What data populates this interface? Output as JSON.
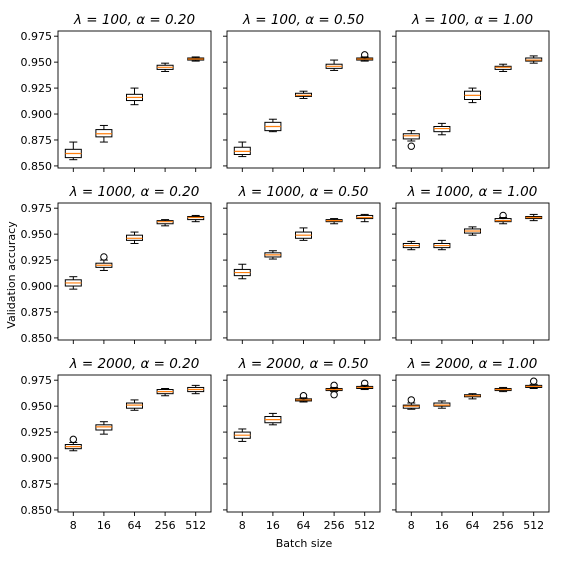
{
  "chart_data": {
    "type": "box",
    "xlabel": "Batch size",
    "ylabel": "Validation accuracy",
    "categories": [
      "8",
      "16",
      "64",
      "256",
      "512"
    ],
    "ylim": [
      0.848,
      0.98
    ],
    "yticks": [
      "0.850",
      "0.875",
      "0.900",
      "0.925",
      "0.950",
      "0.975"
    ],
    "ytick_values": [
      0.85,
      0.875,
      0.9,
      0.925,
      0.95,
      0.975
    ],
    "colors": {
      "box_edge": "#000000",
      "median": "#ff7f0e",
      "box_fill": "#ffffff"
    },
    "panels": [
      {
        "title_left": "λ = 100,",
        "title_right": "α = 0.20",
        "boxes": [
          {
            "wl": 0.856,
            "q1": 0.858,
            "med": 0.862,
            "q3": 0.866,
            "wh": 0.873,
            "outliers": []
          },
          {
            "wl": 0.873,
            "q1": 0.878,
            "med": 0.881,
            "q3": 0.885,
            "wh": 0.889,
            "outliers": []
          },
          {
            "wl": 0.909,
            "q1": 0.913,
            "med": 0.916,
            "q3": 0.919,
            "wh": 0.925,
            "outliers": []
          },
          {
            "wl": 0.941,
            "q1": 0.943,
            "med": 0.945,
            "q3": 0.947,
            "wh": 0.949,
            "outliers": []
          },
          {
            "wl": 0.951,
            "q1": 0.952,
            "med": 0.953,
            "q3": 0.954,
            "wh": 0.955,
            "outliers": []
          }
        ]
      },
      {
        "title_left": "λ = 100,",
        "title_right": "α = 0.50",
        "boxes": [
          {
            "wl": 0.859,
            "q1": 0.861,
            "med": 0.864,
            "q3": 0.868,
            "wh": 0.873,
            "outliers": []
          },
          {
            "wl": 0.883,
            "q1": 0.884,
            "med": 0.888,
            "q3": 0.892,
            "wh": 0.895,
            "outliers": []
          },
          {
            "wl": 0.915,
            "q1": 0.917,
            "med": 0.918,
            "q3": 0.92,
            "wh": 0.922,
            "outliers": []
          },
          {
            "wl": 0.942,
            "q1": 0.944,
            "med": 0.946,
            "q3": 0.948,
            "wh": 0.952,
            "outliers": []
          },
          {
            "wl": 0.951,
            "q1": 0.952,
            "med": 0.953,
            "q3": 0.954,
            "wh": 0.955,
            "outliers": [
              0.957
            ]
          }
        ]
      },
      {
        "title_left": "λ = 100,",
        "title_right": "α = 1.00",
        "boxes": [
          {
            "wl": 0.874,
            "q1": 0.876,
            "med": 0.879,
            "q3": 0.881,
            "wh": 0.884,
            "outliers": [
              0.869
            ]
          },
          {
            "wl": 0.88,
            "q1": 0.883,
            "med": 0.886,
            "q3": 0.888,
            "wh": 0.891,
            "outliers": []
          },
          {
            "wl": 0.911,
            "q1": 0.914,
            "med": 0.918,
            "q3": 0.922,
            "wh": 0.925,
            "outliers": []
          },
          {
            "wl": 0.941,
            "q1": 0.943,
            "med": 0.945,
            "q3": 0.946,
            "wh": 0.948,
            "outliers": []
          },
          {
            "wl": 0.949,
            "q1": 0.951,
            "med": 0.952,
            "q3": 0.954,
            "wh": 0.956,
            "outliers": []
          }
        ]
      },
      {
        "title_left": "λ = 1000,",
        "title_right": "α = 0.20",
        "boxes": [
          {
            "wl": 0.897,
            "q1": 0.9,
            "med": 0.903,
            "q3": 0.906,
            "wh": 0.909,
            "outliers": []
          },
          {
            "wl": 0.915,
            "q1": 0.918,
            "med": 0.92,
            "q3": 0.922,
            "wh": 0.925,
            "outliers": [
              0.928
            ]
          },
          {
            "wl": 0.941,
            "q1": 0.944,
            "med": 0.946,
            "q3": 0.949,
            "wh": 0.952,
            "outliers": []
          },
          {
            "wl": 0.958,
            "q1": 0.96,
            "med": 0.962,
            "q3": 0.963,
            "wh": 0.964,
            "outliers": []
          },
          {
            "wl": 0.962,
            "q1": 0.964,
            "med": 0.966,
            "q3": 0.967,
            "wh": 0.968,
            "outliers": []
          }
        ]
      },
      {
        "title_left": "λ = 1000,",
        "title_right": "α = 0.50",
        "boxes": [
          {
            "wl": 0.907,
            "q1": 0.91,
            "med": 0.913,
            "q3": 0.916,
            "wh": 0.921,
            "outliers": []
          },
          {
            "wl": 0.926,
            "q1": 0.928,
            "med": 0.93,
            "q3": 0.932,
            "wh": 0.934,
            "outliers": []
          },
          {
            "wl": 0.944,
            "q1": 0.946,
            "med": 0.949,
            "q3": 0.952,
            "wh": 0.956,
            "outliers": []
          },
          {
            "wl": 0.96,
            "q1": 0.962,
            "med": 0.963,
            "q3": 0.964,
            "wh": 0.965,
            "outliers": []
          },
          {
            "wl": 0.962,
            "q1": 0.965,
            "med": 0.966,
            "q3": 0.968,
            "wh": 0.969,
            "outliers": []
          }
        ]
      },
      {
        "title_left": "λ = 1000,",
        "title_right": "α = 1.00",
        "boxes": [
          {
            "wl": 0.935,
            "q1": 0.937,
            "med": 0.939,
            "q3": 0.941,
            "wh": 0.943,
            "outliers": []
          },
          {
            "wl": 0.935,
            "q1": 0.937,
            "med": 0.939,
            "q3": 0.941,
            "wh": 0.944,
            "outliers": []
          },
          {
            "wl": 0.949,
            "q1": 0.951,
            "med": 0.953,
            "q3": 0.955,
            "wh": 0.957,
            "outliers": []
          },
          {
            "wl": 0.96,
            "q1": 0.962,
            "med": 0.963,
            "q3": 0.965,
            "wh": 0.966,
            "outliers": [
              0.968
            ]
          },
          {
            "wl": 0.963,
            "q1": 0.965,
            "med": 0.966,
            "q3": 0.967,
            "wh": 0.969,
            "outliers": []
          }
        ]
      },
      {
        "title_left": "λ = 2000,",
        "title_right": "α = 0.20",
        "boxes": [
          {
            "wl": 0.907,
            "q1": 0.909,
            "med": 0.911,
            "q3": 0.913,
            "wh": 0.915,
            "outliers": [
              0.918
            ]
          },
          {
            "wl": 0.923,
            "q1": 0.927,
            "med": 0.93,
            "q3": 0.932,
            "wh": 0.935,
            "outliers": []
          },
          {
            "wl": 0.946,
            "q1": 0.948,
            "med": 0.951,
            "q3": 0.953,
            "wh": 0.956,
            "outliers": []
          },
          {
            "wl": 0.96,
            "q1": 0.962,
            "med": 0.964,
            "q3": 0.966,
            "wh": 0.967,
            "outliers": []
          },
          {
            "wl": 0.962,
            "q1": 0.964,
            "med": 0.966,
            "q3": 0.968,
            "wh": 0.97,
            "outliers": []
          }
        ]
      },
      {
        "title_left": "λ = 2000,",
        "title_right": "α = 0.50",
        "boxes": [
          {
            "wl": 0.916,
            "q1": 0.919,
            "med": 0.922,
            "q3": 0.925,
            "wh": 0.928,
            "outliers": []
          },
          {
            "wl": 0.932,
            "q1": 0.934,
            "med": 0.937,
            "q3": 0.94,
            "wh": 0.943,
            "outliers": []
          },
          {
            "wl": 0.954,
            "q1": 0.955,
            "med": 0.956,
            "q3": 0.957,
            "wh": 0.958,
            "outliers": [
              0.96
            ]
          },
          {
            "wl": 0.964,
            "q1": 0.965,
            "med": 0.966,
            "q3": 0.967,
            "wh": 0.968,
            "outliers": [
              0.961,
              0.97
            ]
          },
          {
            "wl": 0.966,
            "q1": 0.967,
            "med": 0.968,
            "q3": 0.969,
            "wh": 0.97,
            "outliers": [
              0.972
            ]
          }
        ]
      },
      {
        "title_left": "λ = 2000,",
        "title_right": "α = 1.00",
        "boxes": [
          {
            "wl": 0.947,
            "q1": 0.948,
            "med": 0.95,
            "q3": 0.951,
            "wh": 0.953,
            "outliers": [
              0.956
            ]
          },
          {
            "wl": 0.948,
            "q1": 0.95,
            "med": 0.951,
            "q3": 0.953,
            "wh": 0.955,
            "outliers": []
          },
          {
            "wl": 0.957,
            "q1": 0.959,
            "med": 0.96,
            "q3": 0.961,
            "wh": 0.962,
            "outliers": []
          },
          {
            "wl": 0.964,
            "q1": 0.965,
            "med": 0.966,
            "q3": 0.967,
            "wh": 0.968,
            "outliers": []
          },
          {
            "wl": 0.967,
            "q1": 0.968,
            "med": 0.969,
            "q3": 0.97,
            "wh": 0.971,
            "outliers": [
              0.974
            ]
          }
        ]
      }
    ]
  }
}
